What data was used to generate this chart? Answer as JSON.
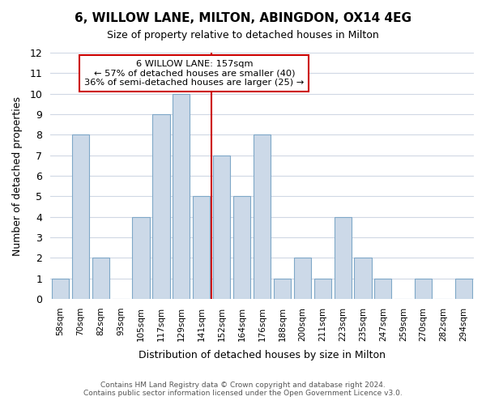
{
  "title": "6, WILLOW LANE, MILTON, ABINGDON, OX14 4EG",
  "subtitle": "Size of property relative to detached houses in Milton",
  "xlabel": "Distribution of detached houses by size in Milton",
  "ylabel": "Number of detached properties",
  "bin_labels": [
    "58sqm",
    "70sqm",
    "82sqm",
    "93sqm",
    "105sqm",
    "117sqm",
    "129sqm",
    "141sqm",
    "152sqm",
    "164sqm",
    "176sqm",
    "188sqm",
    "200sqm",
    "211sqm",
    "223sqm",
    "235sqm",
    "247sqm",
    "259sqm",
    "270sqm",
    "282sqm",
    "294sqm"
  ],
  "bar_heights": [
    1,
    8,
    2,
    0,
    4,
    9,
    10,
    5,
    7,
    5,
    8,
    1,
    2,
    1,
    4,
    2,
    1,
    0,
    1,
    0,
    1
  ],
  "bar_color": "#ccd9e8",
  "bar_edge_color": "#7fa8c8",
  "reference_line_x": 7.5,
  "reference_line_color": "#cc0000",
  "ylim": [
    0,
    12
  ],
  "yticks": [
    0,
    1,
    2,
    3,
    4,
    5,
    6,
    7,
    8,
    9,
    10,
    11,
    12
  ],
  "annotation_title": "6 WILLOW LANE: 157sqm",
  "annotation_line1": "← 57% of detached houses are smaller (40)",
  "annotation_line2": "36% of semi-detached houses are larger (25) →",
  "annotation_box_color": "#ffffff",
  "annotation_box_edge_color": "#cc0000",
  "footer_line1": "Contains HM Land Registry data © Crown copyright and database right 2024.",
  "footer_line2": "Contains public sector information licensed under the Open Government Licence v3.0.",
  "background_color": "#ffffff",
  "grid_color": "#d0d8e4"
}
